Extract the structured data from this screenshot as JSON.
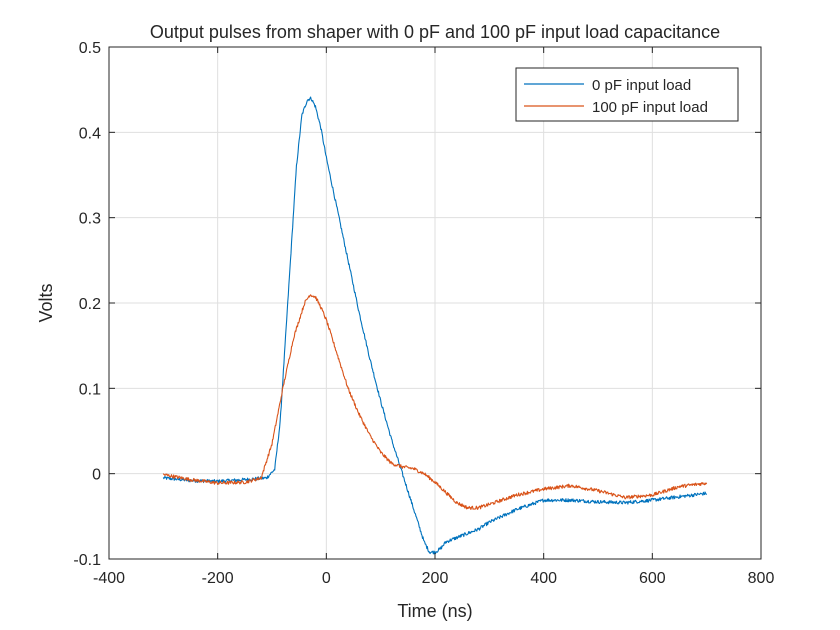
{
  "chart_data": {
    "type": "line",
    "title": "Output pulses from shaper with 0 pF and 100 pF input load capacitance",
    "xlabel": "Time (ns)",
    "ylabel": "Volts",
    "xlim": [
      -400,
      800
    ],
    "ylim": [
      -0.1,
      0.5
    ],
    "xticks": [
      -400,
      -200,
      0,
      200,
      400,
      600,
      800
    ],
    "yticks": [
      -0.1,
      0,
      0.1,
      0.2,
      0.3,
      0.4,
      0.5
    ],
    "xtick_labels": [
      "-400",
      "-200",
      "0",
      "200",
      "400",
      "600",
      "800"
    ],
    "ytick_labels": [
      "-0.1",
      "0",
      "0.1",
      "0.2",
      "0.3",
      "0.4",
      "0.5"
    ],
    "grid": true,
    "legend_position": "top-right",
    "series": [
      {
        "name": "0 pF input load",
        "color": "#0072BD",
        "x": [
          -300,
          -250,
          -200,
          -150,
          -110,
          -95,
          -85,
          -75,
          -65,
          -55,
          -45,
          -35,
          -28,
          -20,
          -10,
          0,
          20,
          40,
          60,
          80,
          100,
          120,
          140,
          160,
          180,
          190,
          200,
          210,
          220,
          240,
          260,
          280,
          300,
          350,
          400,
          450,
          500,
          550,
          600,
          650,
          700
        ],
        "y": [
          -0.005,
          -0.008,
          -0.009,
          -0.007,
          -0.005,
          0.005,
          0.06,
          0.16,
          0.26,
          0.36,
          0.42,
          0.438,
          0.44,
          0.43,
          0.405,
          0.37,
          0.31,
          0.25,
          0.19,
          0.135,
          0.085,
          0.04,
          0.0,
          -0.04,
          -0.08,
          -0.092,
          -0.092,
          -0.088,
          -0.08,
          -0.075,
          -0.07,
          -0.065,
          -0.057,
          -0.042,
          -0.031,
          -0.031,
          -0.033,
          -0.034,
          -0.031,
          -0.027,
          -0.023
        ]
      },
      {
        "name": "100 pF input load",
        "color": "#D95319",
        "x": [
          -300,
          -250,
          -200,
          -150,
          -120,
          -100,
          -80,
          -60,
          -40,
          -30,
          -20,
          -10,
          0,
          20,
          40,
          60,
          80,
          100,
          120,
          140,
          160,
          180,
          200,
          220,
          240,
          260,
          280,
          300,
          350,
          400,
          450,
          500,
          550,
          600,
          650,
          700
        ],
        "y": [
          -0.001,
          -0.007,
          -0.011,
          -0.01,
          -0.005,
          0.035,
          0.1,
          0.16,
          0.2,
          0.21,
          0.207,
          0.195,
          0.18,
          0.14,
          0.1,
          0.07,
          0.045,
          0.025,
          0.012,
          0.008,
          0.006,
          0.0,
          -0.01,
          -0.022,
          -0.034,
          -0.04,
          -0.04,
          -0.036,
          -0.025,
          -0.018,
          -0.014,
          -0.02,
          -0.028,
          -0.025,
          -0.015,
          -0.011
        ]
      }
    ]
  }
}
